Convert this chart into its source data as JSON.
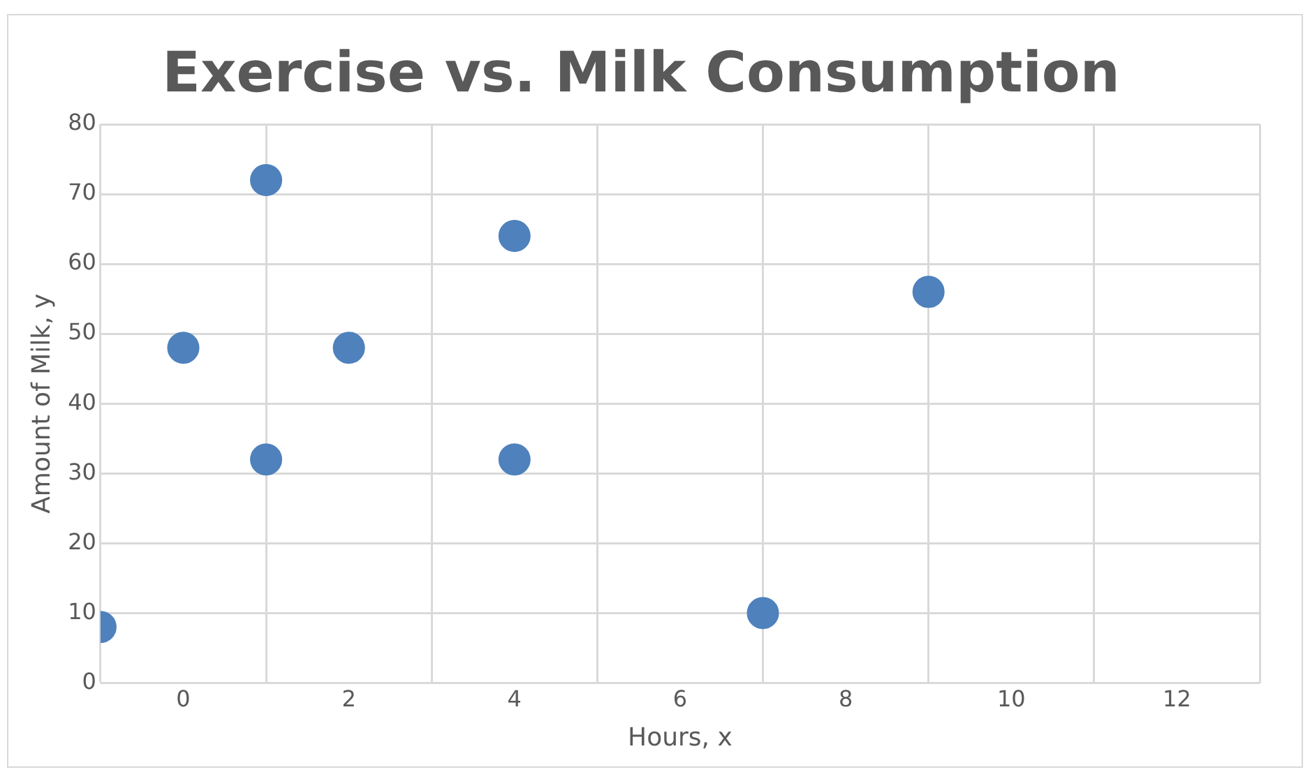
{
  "chart_data": {
    "type": "scatter",
    "title": "Exercise vs. Milk Consumption",
    "xlabel": "Hours, x",
    "ylabel": "Amount of Milk, y",
    "x": [
      -1,
      0,
      1,
      1,
      2,
      4,
      4,
      7,
      9
    ],
    "series": [
      {
        "color": "#4f81bd",
        "values": [
          8,
          48,
          72,
          32,
          48,
          64,
          32,
          10,
          56
        ]
      }
    ],
    "xlim": [
      -1,
      13
    ],
    "xticks": [
      {
        "value": -1,
        "label": null
      },
      0,
      {
        "value": 1,
        "label": null
      },
      2,
      {
        "value": 3,
        "label": null
      },
      4,
      {
        "value": 5,
        "label": null
      },
      6,
      {
        "value": 7,
        "label": null
      },
      8,
      {
        "value": 9,
        "label": null
      },
      10,
      {
        "value": 11,
        "label": null
      },
      12,
      {
        "value": 13,
        "label": null
      }
    ],
    "ylim": [
      0,
      80
    ],
    "yticks": [
      0,
      10,
      20,
      30,
      40,
      50,
      60,
      70,
      80
    ],
    "grid": true,
    "legend": false,
    "marker": "circle"
  }
}
